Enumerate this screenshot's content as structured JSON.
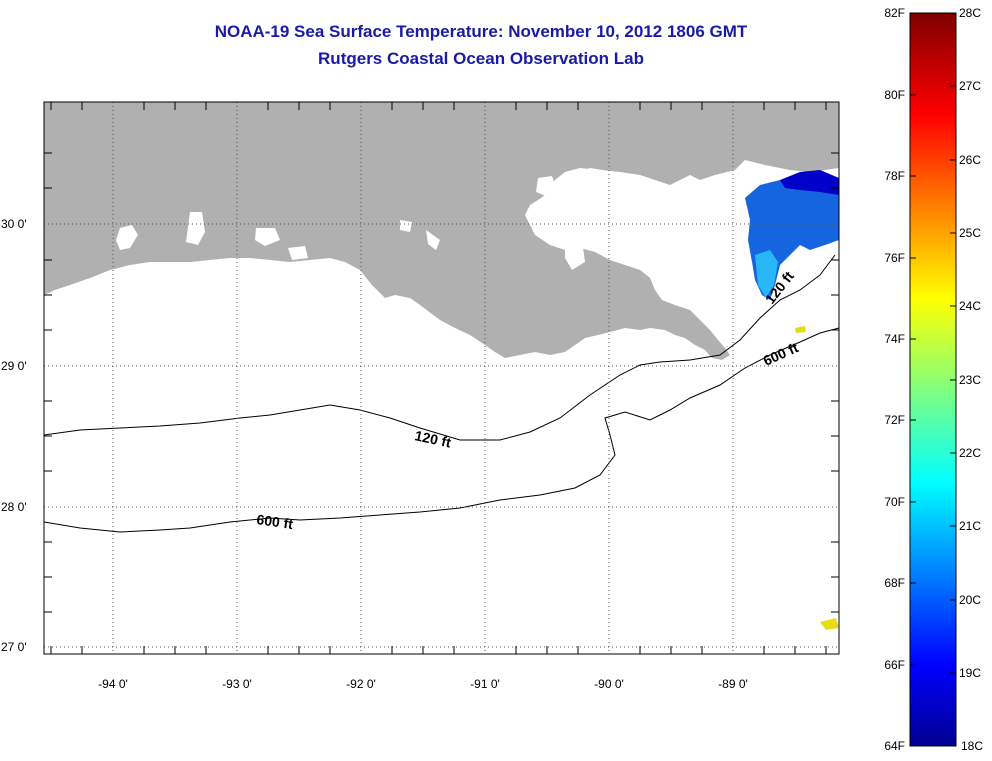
{
  "title": {
    "line1": "NOAA-19 Sea Surface Temperature:  November 10, 2012 1806 GMT",
    "line2": "Rutgers Coastal Ocean Observation Lab"
  },
  "map": {
    "lon_labels": [
      "-94 0'",
      "-93 0'",
      "-92 0'",
      "-91 0'",
      "-90 0'",
      "-89 0'"
    ],
    "lat_labels": [
      "30 0'",
      "29 0'",
      "28 0'",
      "27 0'"
    ],
    "contour_labels": {
      "c120_west": "120 ft",
      "c120_east": "120 ft",
      "c600_west": "600 ft",
      "c600_east": "600 ft"
    },
    "colors": {
      "land": "#b0b0b0",
      "water": "#ffffff",
      "grid": "#555555"
    }
  },
  "colorbar": {
    "fahrenheit_labels": [
      "82F",
      "80F",
      "78F",
      "76F",
      "74F",
      "72F",
      "70F",
      "68F",
      "66F",
      "64F"
    ],
    "celsius_labels": [
      "28C",
      "27C",
      "26C",
      "25C",
      "24C",
      "23C",
      "22C",
      "21C",
      "20C",
      "19C",
      "18C"
    ]
  }
}
